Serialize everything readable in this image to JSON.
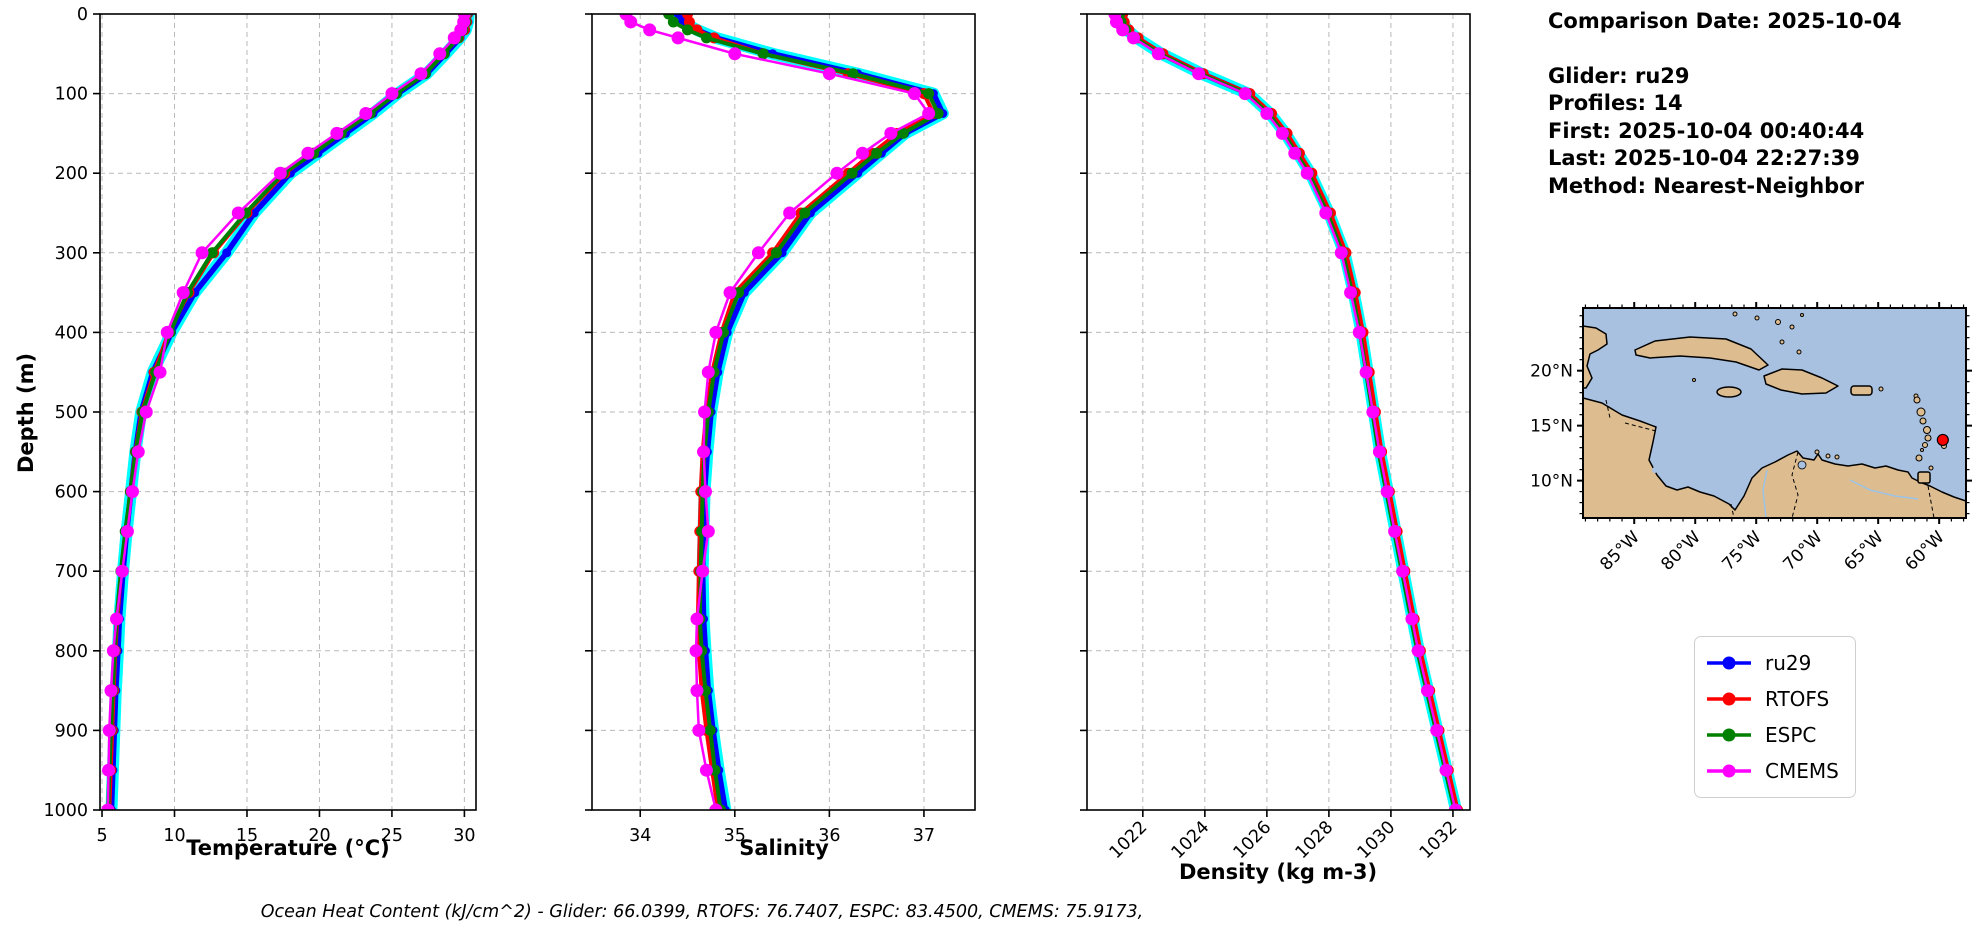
{
  "info": {
    "comparison_date": "Comparison Date: 2025-10-04",
    "glider": "Glider: ru29",
    "profiles": "Profiles: 14",
    "first": "First: 2025-10-04 00:40:44",
    "last": "Last: 2025-10-04 22:27:39",
    "method": "Method: Nearest-Neighbor"
  },
  "caption": "Ocean Heat Content (kJ/cm^2) - Glider: 66.0399,  RTOFS: 76.7407,  ESPC: 83.4500,  CMEMS: 75.9173,",
  "legend": {
    "entries": [
      {
        "label": "ru29",
        "color": "#0000ff"
      },
      {
        "label": "RTOFS",
        "color": "#ff0000"
      },
      {
        "label": "ESPC",
        "color": "#008000"
      },
      {
        "label": "CMEMS",
        "color": "#ff00ff"
      }
    ]
  },
  "map": {
    "extent_w": [
      89.2,
      57.8
    ],
    "extent_n": [
      6.6,
      25.7
    ],
    "ocean_color": "#a8c1e0",
    "land_color": "#ddbd90",
    "lat_ticks": [
      {
        "deg": 20,
        "label": "20°N"
      },
      {
        "deg": 15,
        "label": "15°N"
      },
      {
        "deg": 10,
        "label": "10°N"
      }
    ],
    "lon_ticks": [
      {
        "deg": 85,
        "label": "85°W"
      },
      {
        "deg": 80,
        "label": "80°W"
      },
      {
        "deg": 75,
        "label": "75°W"
      },
      {
        "deg": 70,
        "label": "70°W"
      },
      {
        "deg": 65,
        "label": "65°W"
      },
      {
        "deg": 60,
        "label": "60°W"
      }
    ],
    "marker": {
      "lon_w": 59.7,
      "lat_n": 13.7,
      "color": "#ff0000"
    }
  },
  "chart_data": {
    "type": "line",
    "grid": true,
    "y_axis": {
      "label": "Depth (m)",
      "lim": [
        0,
        1000
      ],
      "inverted": true,
      "ticks": [
        0,
        100,
        200,
        300,
        400,
        500,
        600,
        700,
        800,
        900,
        1000
      ]
    },
    "depths": [
      0,
      10,
      20,
      30,
      50,
      75,
      100,
      125,
      150,
      175,
      200,
      250,
      300,
      350,
      400,
      450,
      500,
      550,
      600,
      650,
      700,
      760,
      800,
      850,
      900,
      950,
      1000
    ],
    "series_meta": [
      {
        "name": "ru29",
        "color": "#0000ff",
        "halo_color": "#00ffff",
        "line_width": 5.5,
        "marker_r": 4.5
      },
      {
        "name": "RTOFS",
        "color": "#ff0000",
        "line_width": 4,
        "marker_r": 5.5
      },
      {
        "name": "ESPC",
        "color": "#008000",
        "line_width": 4,
        "marker_r": 5.5
      },
      {
        "name": "CMEMS",
        "color": "#ff00ff",
        "line_width": 2.5,
        "marker_r": 6.5
      }
    ],
    "panels": [
      {
        "id": "temperature",
        "xlabel": "Temperature (°C)",
        "xlim": [
          4.86,
          30.8
        ],
        "xticks": [
          5,
          10,
          15,
          20,
          25,
          30
        ],
        "rotate_xticklabels": false,
        "series": {
          "ru29": [
            30.3,
            30.25,
            30.1,
            29.7,
            28.7,
            27.4,
            25.4,
            23.7,
            21.8,
            19.9,
            18.0,
            15.5,
            13.6,
            11.4,
            9.8,
            8.5,
            7.7,
            7.3,
            7.0,
            6.7,
            6.45,
            6.2,
            6.1,
            5.95,
            5.85,
            5.75,
            5.65
          ],
          "RTOFS": [
            30.2,
            30.15,
            30.0,
            29.6,
            28.5,
            27.2,
            25.2,
            23.4,
            21.4,
            19.5,
            17.6,
            15.0,
            12.7,
            11.0,
            9.6,
            8.6,
            7.75,
            7.3,
            6.95,
            6.62,
            6.32,
            6.05,
            5.92,
            5.8,
            5.7,
            5.6,
            5.5
          ],
          "ESPC": [
            30.15,
            30.1,
            29.9,
            29.55,
            28.6,
            27.3,
            25.3,
            23.5,
            21.5,
            19.6,
            17.5,
            14.9,
            12.6,
            10.9,
            9.7,
            8.7,
            7.8,
            7.32,
            6.97,
            6.6,
            6.3,
            6.0,
            5.88,
            5.74,
            5.62,
            5.5,
            5.42
          ],
          "CMEMS": [
            30.0,
            29.95,
            29.75,
            29.3,
            28.3,
            27.0,
            25.0,
            23.2,
            21.2,
            19.2,
            17.3,
            14.4,
            11.9,
            10.6,
            9.5,
            9.0,
            8.05,
            7.5,
            7.1,
            6.75,
            6.4,
            6.0,
            5.78,
            5.62,
            5.5,
            5.45,
            5.4
          ]
        }
      },
      {
        "id": "salinity",
        "xlabel": "Salinity",
        "xlim": [
          33.49,
          37.54
        ],
        "xticks": [
          34,
          35,
          36,
          37
        ],
        "rotate_xticklabels": false,
        "series": {
          "ru29": [
            34.4,
            34.45,
            34.6,
            34.8,
            35.4,
            36.3,
            37.1,
            37.2,
            36.8,
            36.55,
            36.3,
            35.8,
            35.5,
            35.1,
            34.92,
            34.82,
            34.75,
            34.71,
            34.68,
            34.67,
            34.66,
            34.67,
            34.69,
            34.72,
            34.77,
            34.83,
            34.9
          ],
          "RTOFS": [
            34.5,
            34.52,
            34.6,
            34.78,
            35.3,
            36.2,
            37.0,
            37.1,
            36.72,
            36.45,
            36.2,
            35.7,
            35.4,
            35.0,
            34.86,
            34.76,
            34.7,
            34.66,
            34.64,
            34.63,
            34.62,
            34.61,
            34.62,
            34.65,
            34.7,
            34.76,
            34.82
          ],
          "ESPC": [
            34.3,
            34.35,
            34.5,
            34.7,
            35.3,
            36.25,
            37.05,
            37.15,
            36.78,
            36.5,
            36.24,
            35.74,
            35.44,
            35.04,
            34.88,
            34.78,
            34.72,
            34.68,
            34.66,
            34.65,
            34.64,
            34.63,
            34.65,
            34.69,
            34.74,
            34.79,
            34.85
          ],
          "CMEMS": [
            33.85,
            33.9,
            34.1,
            34.4,
            35.0,
            36.0,
            36.9,
            37.05,
            36.65,
            36.35,
            36.08,
            35.58,
            35.25,
            34.95,
            34.8,
            34.72,
            34.68,
            34.67,
            34.69,
            34.72,
            34.66,
            34.6,
            34.59,
            34.6,
            34.62,
            34.7,
            34.8
          ]
        }
      },
      {
        "id": "density",
        "xlabel": "Density (kg m-3)",
        "xlim": [
          1020.2,
          1032.55
        ],
        "xticks": [
          1022,
          1024,
          1026,
          1028,
          1030,
          1032
        ],
        "rotate_xticklabels": true,
        "series": {
          "ru29": [
            1021.3,
            1021.35,
            1021.5,
            1021.8,
            1022.6,
            1023.9,
            1025.4,
            1026.1,
            1026.6,
            1027.0,
            1027.4,
            1028.0,
            1028.5,
            1028.8,
            1029.05,
            1029.25,
            1029.45,
            1029.65,
            1029.9,
            1030.15,
            1030.4,
            1030.7,
            1030.9,
            1031.2,
            1031.5,
            1031.8,
            1032.1
          ],
          "RTOFS": [
            1021.35,
            1021.4,
            1021.55,
            1021.85,
            1022.65,
            1023.95,
            1025.45,
            1026.15,
            1026.65,
            1027.05,
            1027.45,
            1028.05,
            1028.55,
            1028.85,
            1029.1,
            1029.3,
            1029.5,
            1029.7,
            1029.95,
            1030.2,
            1030.45,
            1030.75,
            1030.95,
            1031.25,
            1031.55,
            1031.85,
            1032.15
          ],
          "ESPC": [
            1021.25,
            1021.3,
            1021.45,
            1021.75,
            1022.55,
            1023.85,
            1025.35,
            1026.05,
            1026.55,
            1026.95,
            1027.35,
            1027.95,
            1028.45,
            1028.75,
            1029.0,
            1029.2,
            1029.4,
            1029.6,
            1029.85,
            1030.1,
            1030.35,
            1030.65,
            1030.85,
            1031.15,
            1031.45,
            1031.75,
            1032.05
          ],
          "CMEMS": [
            1021.1,
            1021.15,
            1021.35,
            1021.7,
            1022.5,
            1023.8,
            1025.3,
            1026.0,
            1026.5,
            1026.9,
            1027.3,
            1027.9,
            1028.4,
            1028.7,
            1028.98,
            1029.2,
            1029.42,
            1029.63,
            1029.88,
            1030.12,
            1030.38,
            1030.68,
            1030.88,
            1031.18,
            1031.48,
            1031.78,
            1032.08
          ]
        }
      }
    ]
  }
}
